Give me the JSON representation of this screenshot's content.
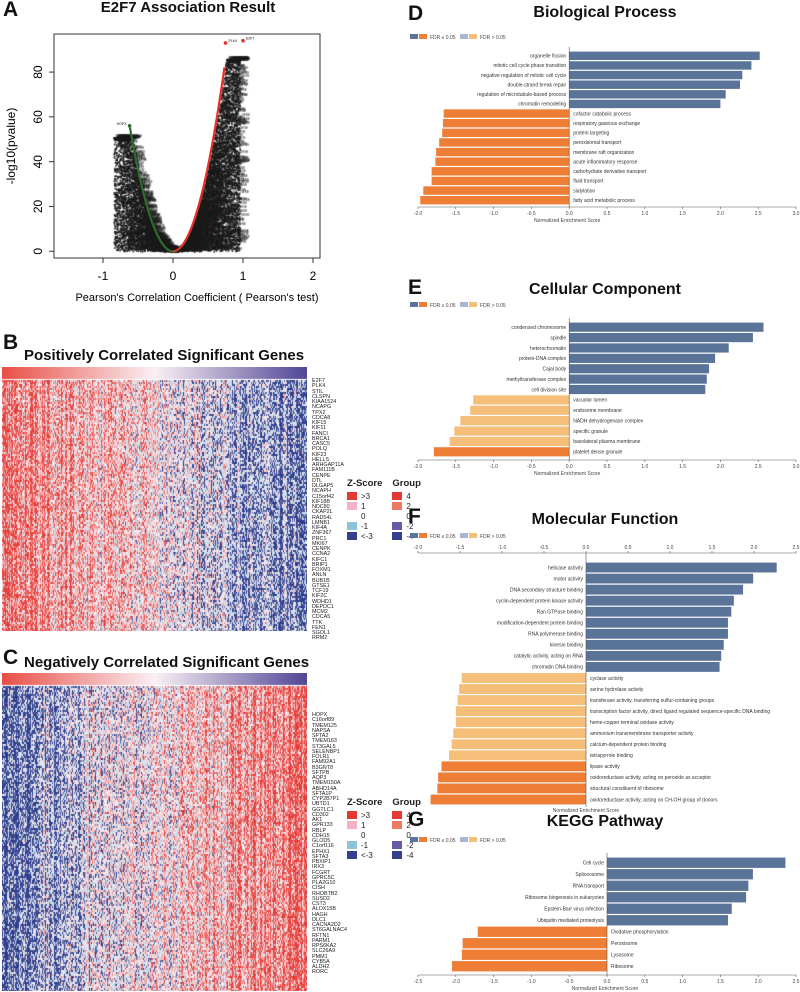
{
  "panels": {
    "A": {
      "letter": "A",
      "title": "E2F7 Association Result",
      "xlabel": "Pearson's Correlation Coefficient ( Pearson's test)",
      "ylabel": "-log10(pvalue)",
      "xticks": [
        "-1",
        "0",
        "1",
        "2"
      ],
      "yticks": [
        "0",
        "20",
        "40",
        "60",
        "80"
      ]
    },
    "B": {
      "letter": "B",
      "title": "Positively Correlated Significant Genes",
      "genes": [
        "E2F7",
        "PLK4",
        "STIL",
        "CLSPN",
        "KIAA1524",
        "NCAPG",
        "TPX2",
        "CDCA8",
        "KIF15",
        "KIF11",
        "FANCI",
        "BRCA1",
        "CASC5",
        "POLQ",
        "KIF23",
        "HELLS",
        "ARHGAP11A",
        "FAM111B",
        "CENPE",
        "DTL",
        "DLGAP5",
        "NCAPH",
        "C15orf42",
        "KIF18B",
        "NDC80",
        "CKAP2L",
        "RAD54L",
        "LMNB1",
        "KIF4A",
        "ZNF367",
        "PRC1",
        "MKI67",
        "CENPK",
        "CCNA2",
        "KIFC1",
        "BRIP1",
        "FOXM1",
        "ANLN",
        "BUB1B",
        "GTSE1",
        "TCF19",
        "KIF2C",
        "WDHD1",
        "DEPDC1",
        "MCM2",
        "CDCA5",
        "TTK",
        "FEN1",
        "SGOL1",
        "RRM2"
      ]
    },
    "C": {
      "letter": "C",
      "title": "Negatively Correlated Significant Genes",
      "genes": [
        "HOPX",
        "C16orf89",
        "TMEM125",
        "NAPSA",
        "SFTA2",
        "TMEM163",
        "ST3GAL5",
        "SELENBP1",
        "FOLR1",
        "FAM92A1",
        "B3GNT8",
        "SFTPB",
        "AQP3",
        "TMEM150A",
        "ABHD14A",
        "SFTA1P",
        "CYP2B7P1",
        "UBTD1",
        "GGTLC1",
        "CD302",
        "AK1",
        "GPR133",
        "RBLP",
        "CDH15",
        "GLOD5",
        "C1orf116",
        "EPHX1",
        "SFTA3",
        "PBXIP1",
        "IRX3",
        "FCGRT",
        "GPRC5C",
        "PLA2G10",
        "CISH",
        "RHOBTB2",
        "SUSD2",
        "CST3",
        "ALOX15B",
        "HAGH",
        "DLC1",
        "CACNA2D2",
        "ST6GALNAC4",
        "RFTN1",
        "PARM1",
        "RPS6KA2",
        "SLC26A9",
        "PMM1",
        "CYB5A",
        "ALDH2",
        "RORC"
      ]
    }
  },
  "heatmap_legend": {
    "zscore_title": "Z-Score",
    "zscore_items": [
      ">3",
      "1",
      "0",
      "-1",
      "<-3"
    ],
    "group_title": "Group",
    "group_items": [
      "4",
      "2",
      "0",
      "-2",
      "-4"
    ]
  },
  "colors": {
    "pos_sig": "#5a7399",
    "pos_nonsig": "#a9b7cf",
    "neg_sig": "#ee7d36",
    "neg_nonsig": "#f6bf79",
    "heat_high": "#e8312f",
    "heat_low": "#323c8c"
  },
  "legend_labels": {
    "sig": "FDR ≤ 0.05",
    "nonsig": "FDR > 0.05"
  },
  "chart_data": [
    {
      "type": "scatter",
      "title": "E2F7 Association Result",
      "xlabel": "Pearson's Correlation Coefficient ( Pearson's test)",
      "ylabel": "-log10(pvalue)",
      "xlim": [
        -1.7,
        2.1
      ],
      "ylim": [
        -3,
        97
      ],
      "highlight_points": [
        {
          "label": "E2F7",
          "x": 1.0,
          "y": 94
        },
        {
          "label": "PLK4",
          "x": 0.75,
          "y": 93
        },
        {
          "label": "HOPX",
          "x": -0.62,
          "y": 56
        }
      ]
    },
    {
      "type": "bar",
      "letter": "D",
      "title": "Biological Process",
      "xlabel": "Normalized Enrichment Score",
      "xlim": [
        -2.0,
        3.0
      ],
      "xticks": [
        "-2.0",
        "-1.5",
        "-1.0",
        "-0.5",
        "0.0",
        "0.5",
        "1.0",
        "1.5",
        "2.0",
        "2.5",
        "3.0"
      ],
      "axis": "bottom",
      "bars": [
        {
          "label": "organelle fission",
          "value": 2.52,
          "sig": true
        },
        {
          "label": "mitotic cell cycle phase transition",
          "value": 2.41,
          "sig": true
        },
        {
          "label": "negative regulation of mitotic cell cycle",
          "value": 2.29,
          "sig": true
        },
        {
          "label": "double-strand break repair",
          "value": 2.26,
          "sig": true
        },
        {
          "label": "regulation of microtubule-based process",
          "value": 2.07,
          "sig": true
        },
        {
          "label": "chromatin remodeling",
          "value": 2.0,
          "sig": true
        },
        {
          "label": "cofactor catabolic process",
          "value": -1.66,
          "sig": true
        },
        {
          "label": "respiratory gaseous exchange",
          "value": -1.67,
          "sig": true
        },
        {
          "label": "protein targeting",
          "value": -1.68,
          "sig": true
        },
        {
          "label": "peroxisomal transport",
          "value": -1.72,
          "sig": true
        },
        {
          "label": "membrane raft organization",
          "value": -1.76,
          "sig": true
        },
        {
          "label": "acute inflammatory response",
          "value": -1.77,
          "sig": true
        },
        {
          "label": "carbohydrate derivative transport",
          "value": -1.82,
          "sig": true
        },
        {
          "label": "fluid transport",
          "value": -1.82,
          "sig": true
        },
        {
          "label": "sialylation",
          "value": -1.93,
          "sig": true
        },
        {
          "label": "fatty acid metabolic process",
          "value": -1.97,
          "sig": true
        }
      ]
    },
    {
      "type": "bar",
      "letter": "E",
      "title": "Cellular Component",
      "xlabel": "Normalized Enrichment Score",
      "xlim": [
        -2.0,
        3.0
      ],
      "xticks": [
        "-2.0",
        "-1.5",
        "-1.0",
        "-0.5",
        "0.0",
        "0.5",
        "1.0",
        "1.5",
        "2.0",
        "2.5",
        "3.0"
      ],
      "axis": "bottom",
      "bars": [
        {
          "label": "condensed chromosome",
          "value": 2.57,
          "sig": true
        },
        {
          "label": "spindle",
          "value": 2.43,
          "sig": true
        },
        {
          "label": "heterochromatin",
          "value": 2.11,
          "sig": true
        },
        {
          "label": "protein-DNA complex",
          "value": 1.93,
          "sig": true
        },
        {
          "label": "Cajal body",
          "value": 1.85,
          "sig": true
        },
        {
          "label": "methyltransferase complex",
          "value": 1.82,
          "sig": true
        },
        {
          "label": "cell division site",
          "value": 1.8,
          "sig": true
        },
        {
          "label": "vacuolar lumen",
          "value": -1.27,
          "sig": false
        },
        {
          "label": "endosome membrane",
          "value": -1.31,
          "sig": false
        },
        {
          "label": "NADH dehydrogenase complex",
          "value": -1.44,
          "sig": false
        },
        {
          "label": "specific granule",
          "value": -1.52,
          "sig": false
        },
        {
          "label": "basolateral plasma membrane",
          "value": -1.58,
          "sig": false
        },
        {
          "label": "platelet dense granule",
          "value": -1.79,
          "sig": true
        }
      ]
    },
    {
      "type": "bar",
      "letter": "F",
      "title": "Molecular Function",
      "xlabel": "Normalized Enrichment Score",
      "xlim": [
        -2.0,
        2.5
      ],
      "xticks": [
        "-2.0",
        "-1.5",
        "-1.0",
        "-0.5",
        "0.0",
        "0.5",
        "1.0",
        "1.5",
        "2.0",
        "2.5"
      ],
      "axis": "top",
      "bars": [
        {
          "label": "helicase activity",
          "value": 2.27,
          "sig": true
        },
        {
          "label": "motor activity",
          "value": 1.99,
          "sig": true
        },
        {
          "label": "DNA secondary structure binding",
          "value": 1.87,
          "sig": true
        },
        {
          "label": "cyclin-dependent protein kinase activity",
          "value": 1.76,
          "sig": true
        },
        {
          "label": "Ran GTPase binding",
          "value": 1.73,
          "sig": true
        },
        {
          "label": "modification-dependent protein binding",
          "value": 1.69,
          "sig": true
        },
        {
          "label": "RNA polymerase binding",
          "value": 1.69,
          "sig": true
        },
        {
          "label": "kinesin binding",
          "value": 1.64,
          "sig": true
        },
        {
          "label": "catalytic activity, acting on RNA",
          "value": 1.61,
          "sig": true
        },
        {
          "label": "chromatin DNA binding",
          "value": 1.59,
          "sig": true
        },
        {
          "label": "cyclase activity",
          "value": -1.48,
          "sig": false
        },
        {
          "label": "serine hydrolase activity",
          "value": -1.51,
          "sig": false
        },
        {
          "label": "transferase activity, transferring sulfur-containing groups",
          "value": -1.53,
          "sig": false
        },
        {
          "label": "transcription factor activity, direct ligand regulated sequence-specific DNA binding",
          "value": -1.55,
          "sig": false
        },
        {
          "label": "heme-copper terminal oxidase activity",
          "value": -1.55,
          "sig": false
        },
        {
          "label": "ammonium transmembrane transporter activity",
          "value": -1.58,
          "sig": false
        },
        {
          "label": "calcium-dependent protein binding",
          "value": -1.6,
          "sig": false
        },
        {
          "label": "tetrapyrrole binding",
          "value": -1.63,
          "sig": false
        },
        {
          "label": "lipase activity",
          "value": -1.72,
          "sig": true
        },
        {
          "label": "oxidoreductase activity, acting on peroxide as acceptor",
          "value": -1.76,
          "sig": true
        },
        {
          "label": "structural constituent of ribosome",
          "value": -1.77,
          "sig": true
        },
        {
          "label": "oxidoreductase activity, acting on CH-OH group of donors",
          "value": -1.85,
          "sig": true
        }
      ]
    },
    {
      "type": "bar",
      "letter": "G",
      "title": "KEGG Pathway",
      "xlabel": "Normalized Enrichment Score",
      "xlim": [
        -2.5,
        2.5
      ],
      "xticks": [
        "-2.5",
        "-2.0",
        "-1.5",
        "-1.0",
        "-0.5",
        "0.0",
        "0.5",
        "1.0",
        "1.5",
        "2.0",
        "2.5"
      ],
      "axis": "bottom",
      "bars": [
        {
          "label": "Cell cycle",
          "value": 2.36,
          "sig": true
        },
        {
          "label": "Spliceosome",
          "value": 1.93,
          "sig": true
        },
        {
          "label": "RNA transport",
          "value": 1.87,
          "sig": true
        },
        {
          "label": "Ribosome biogenesis in eukaryotes",
          "value": 1.84,
          "sig": true
        },
        {
          "label": "Epstein-Barr virus infection",
          "value": 1.65,
          "sig": true
        },
        {
          "label": "Ubiquitin mediated proteolysis",
          "value": 1.6,
          "sig": true
        },
        {
          "label": "Oxidative phosphorylation",
          "value": -1.71,
          "sig": true
        },
        {
          "label": "Peroxisome",
          "value": -1.91,
          "sig": true
        },
        {
          "label": "Lysosome",
          "value": -1.92,
          "sig": true
        },
        {
          "label": "Ribosome",
          "value": -2.05,
          "sig": true
        }
      ]
    }
  ]
}
